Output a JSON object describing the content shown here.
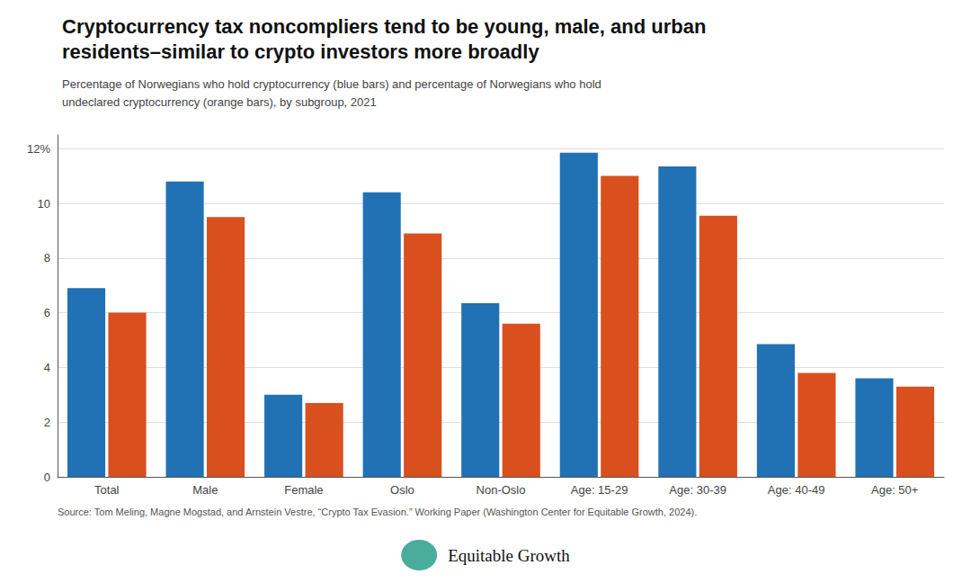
{
  "chart_data": {
    "type": "bar",
    "title": "Cryptocurrency tax noncompliers tend to be young, male, and urban\nresidents–similar to crypto investors more broadly",
    "subtitle": "Percentage of Norwegians who hold cryptocurrency (blue bars) and percentage of Norwegians who hold\nundeclared cryptocurrency (orange bars), by subgroup, 2021",
    "source": "Source: Tom Meling, Magne Mogstad, and Arnstein Vestre, “Crypto Tax Evasion.” Working Paper (Washington Center for Equitable Growth, 2024).",
    "annotations": [
      "Equitable Growth"
    ],
    "categories": [
      "Total",
      "Male",
      "Female",
      "Oslo",
      "Non-Oslo",
      "Age: 15-29",
      "Age: 30-39",
      "Age: 40-49",
      "Age: 50+"
    ],
    "series": [
      {
        "color": "#2171b5",
        "values": [
          6.9,
          10.8,
          3.0,
          10.4,
          6.35,
          11.85,
          11.35,
          4.85,
          3.6
        ]
      },
      {
        "color": "#d94f1e",
        "values": [
          6.0,
          9.5,
          2.7,
          8.9,
          5.6,
          11.0,
          9.55,
          3.8,
          3.3
        ]
      }
    ],
    "ylim": [
      0,
      12.5
    ],
    "yticks": [
      0,
      2,
      4,
      6,
      8,
      10,
      {
        "value": 12,
        "label": "12%"
      }
    ],
    "grid": true
  }
}
